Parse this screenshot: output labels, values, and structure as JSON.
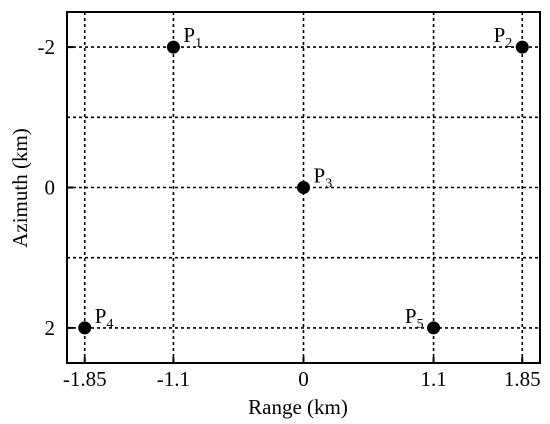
{
  "chart_data": {
    "type": "scatter",
    "title": "",
    "xlabel": "Range (km)",
    "ylabel": "Azimuth (km)",
    "xlim": [
      -2.0,
      2.0
    ],
    "ylim": [
      -2.5,
      2.5
    ],
    "y_inverted": true,
    "grid": true,
    "x_ticks": [
      {
        "value": -1.85,
        "label": "-1.85"
      },
      {
        "value": -1.1,
        "label": "-1.1"
      },
      {
        "value": 0,
        "label": "0"
      },
      {
        "value": 1.1,
        "label": "1.1"
      },
      {
        "value": 1.85,
        "label": "1.85"
      }
    ],
    "y_ticks": [
      {
        "value": -2,
        "label": "-2"
      },
      {
        "value": 0,
        "label": "0"
      },
      {
        "value": 2,
        "label": "2"
      }
    ],
    "x_grid": [
      -1.85,
      -1.1,
      0,
      1.1,
      1.85
    ],
    "y_grid": [
      -2,
      -1,
      0,
      1,
      2
    ],
    "points": [
      {
        "name": "P",
        "sub": "1",
        "x": -1.1,
        "y": -2,
        "label_side": "right"
      },
      {
        "name": "P",
        "sub": "2",
        "x": 1.85,
        "y": -2,
        "label_side": "left"
      },
      {
        "name": "P",
        "sub": "3",
        "x": 0,
        "y": 0,
        "label_side": "right"
      },
      {
        "name": "P",
        "sub": "4",
        "x": -1.85,
        "y": 2,
        "label_side": "right"
      },
      {
        "name": "P",
        "sub": "5",
        "x": 1.1,
        "y": 2,
        "label_side": "left"
      }
    ],
    "colors": {
      "marker": "#000000",
      "grid": "#000000",
      "frame": "#000000"
    }
  }
}
